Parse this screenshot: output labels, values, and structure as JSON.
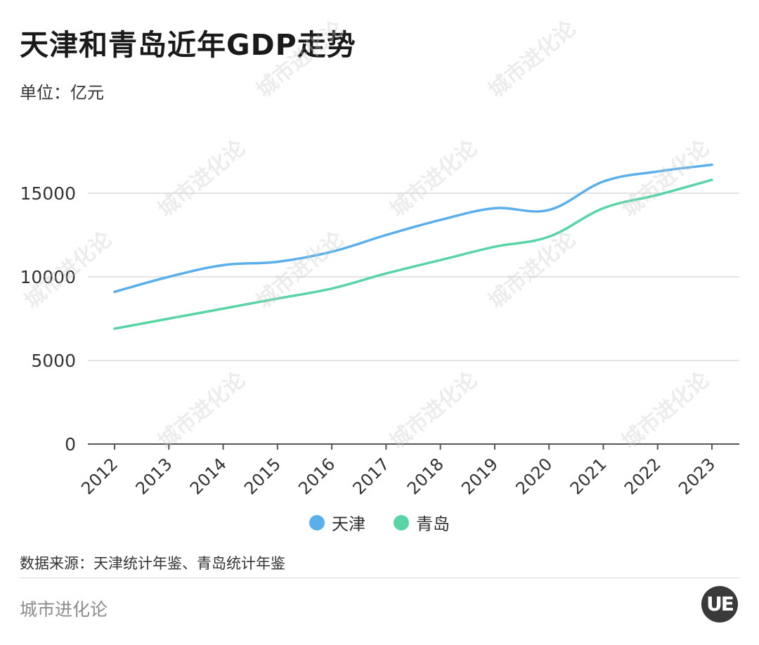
{
  "title": "天津和青岛近年GDP走势",
  "unit_label": "单位：亿元",
  "source": "数据来源：天津统计年鉴、青岛统计年鉴",
  "brand": "城市进化论",
  "logo_text": "UE",
  "watermark_text": "城市进化论",
  "colors": {
    "tianjin": "#5aaee9",
    "qingdao": "#5ad4a6",
    "grid": "#dcdcdc",
    "axis": "#555555"
  },
  "chart_data": {
    "type": "line",
    "title": "天津和青岛近年GDP走势",
    "ylabel": "单位：亿元",
    "xlabel": "",
    "x": [
      "2012",
      "2013",
      "2014",
      "2015",
      "2016",
      "2017",
      "2018",
      "2019",
      "2020",
      "2021",
      "2022",
      "2023"
    ],
    "ylim": [
      0,
      18000
    ],
    "yticks": [
      0,
      5000,
      10000,
      15000
    ],
    "grid": true,
    "legend": "bottom-center",
    "series": [
      {
        "name": "天津",
        "color": "#5aaee9",
        "values": [
          9100,
          10000,
          10700,
          10900,
          11500,
          12500,
          13400,
          14100,
          14000,
          15700,
          16300,
          16700
        ]
      },
      {
        "name": "青岛",
        "color": "#5ad4a6",
        "values": [
          6900,
          7500,
          8100,
          8700,
          9300,
          10200,
          11000,
          11800,
          12400,
          14100,
          14900,
          15800
        ]
      }
    ]
  }
}
